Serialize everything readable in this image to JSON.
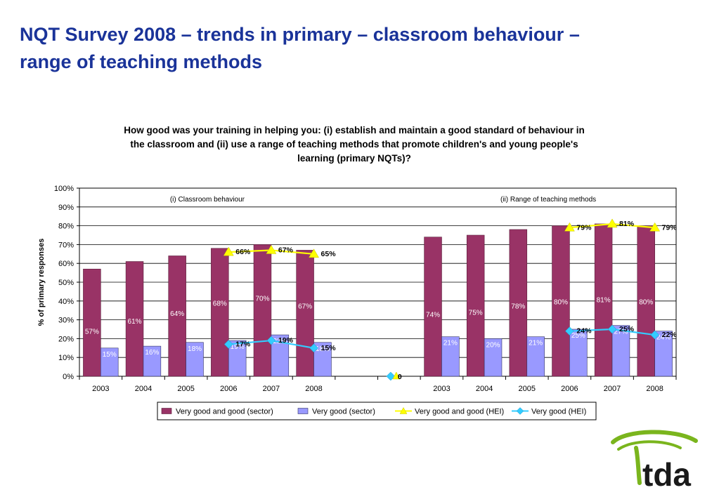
{
  "slide": {
    "title_line1": "NQT Survey 2008 – trends in primary – classroom behaviour –",
    "title_line2": "range of teaching methods"
  },
  "logo": {
    "text": "tda",
    "color": "#7ab51d",
    "text_color": "#1a1a1a"
  },
  "colors": {
    "title": "#1a3399",
    "sector_good": "#993366",
    "sector_very_good": "#9999ff",
    "hei_good": "#ffff00",
    "hei_very_good": "#33ccff"
  },
  "chart_data": {
    "type": "bar",
    "title_line1": "How good was your training in helping you: (i) establish and maintain a good standard of behaviour in",
    "title_line2": "the classroom and (ii) use a range of teaching methods that promote children's and young people's",
    "title_line3": "learning (primary NQTs)?",
    "ylabel": "% of primary responses",
    "ylim": [
      0,
      100
    ],
    "yticks": [
      "0%",
      "10%",
      "20%",
      "30%",
      "40%",
      "50%",
      "60%",
      "70%",
      "80%",
      "90%",
      "100%"
    ],
    "grid": true,
    "legend_position": "bottom",
    "categories": [
      "2003",
      "2004",
      "2005",
      "2006",
      "2007",
      "2008",
      "",
      "",
      "2003",
      "2004",
      "2005",
      "2006",
      "2007",
      "2008"
    ],
    "panels": [
      {
        "label": "(i) Classroom behaviour",
        "start": 0,
        "end": 5
      },
      {
        "label": "(ii) Range of teaching methods",
        "start": 8,
        "end": 13
      }
    ],
    "gap_marker": {
      "category_index": 7,
      "value": 0,
      "label": "0"
    },
    "series": [
      {
        "name": "Very good and good (sector)",
        "kind": "bar",
        "values": [
          57,
          61,
          64,
          68,
          70,
          67,
          null,
          null,
          74,
          75,
          78,
          80,
          81,
          80
        ]
      },
      {
        "name": "Very good (sector)",
        "kind": "bar",
        "values": [
          15,
          16,
          18,
          19,
          22,
          18,
          null,
          null,
          21,
          20,
          21,
          25,
          27,
          24
        ]
      },
      {
        "name": "Very good and good (HEI)",
        "kind": "line",
        "marker": "triangle",
        "values": [
          null,
          null,
          null,
          66,
          67,
          65,
          null,
          null,
          null,
          null,
          null,
          79,
          81,
          79
        ]
      },
      {
        "name": "Very good (HEI)",
        "kind": "line",
        "marker": "diamond",
        "values": [
          null,
          null,
          null,
          17,
          19,
          15,
          null,
          null,
          null,
          null,
          null,
          24,
          25,
          22
        ]
      }
    ]
  }
}
